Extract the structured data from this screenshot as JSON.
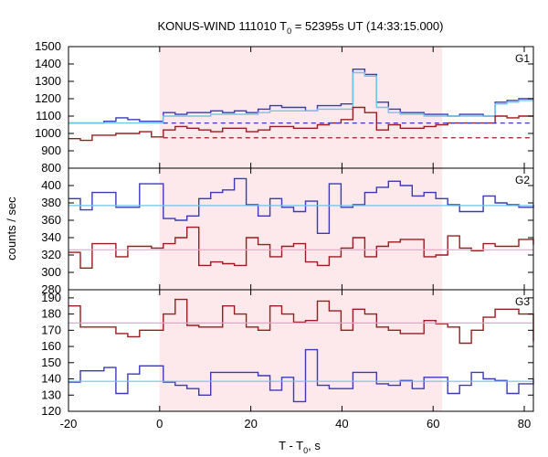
{
  "chart_data": {
    "type": "line",
    "title": "KONUS-WIND 111010 T",
    "title_sub": "0",
    "title_rest": " = 52395s UT (14:33:15.000)",
    "xlabel": "T - T",
    "xlabel_sub": "0",
    "xlabel_rest": ", s",
    "ylabel": "counts / sec",
    "xlim": [
      -20,
      82
    ],
    "x_ticks": [
      -20,
      0,
      20,
      40,
      60,
      80
    ],
    "x_tick_labels": [
      "-20",
      "0",
      "20",
      "40",
      "60",
      "80"
    ],
    "highlight_interval": [
      0,
      62
    ],
    "colors": {
      "highlight": "#fde8ec",
      "blue": "#3a3ab8",
      "red": "#9b1c1c",
      "cyan": "#6ec6ea",
      "pink": "#f0a0c8",
      "frame": "#000000"
    },
    "bin_edges": [
      -20,
      -17.4,
      -14.8,
      -12.2,
      -9.6,
      -7,
      -4.4,
      -1.8,
      0.8,
      3.4,
      6,
      8.6,
      11.2,
      13.8,
      16.4,
      19,
      21.6,
      24.2,
      26.8,
      29.4,
      32,
      34.6,
      37.2,
      39.8,
      42.4,
      45,
      47.6,
      50.2,
      52.8,
      55.4,
      58,
      60.6,
      63.2,
      65.8,
      68.4,
      71,
      73.6,
      76.2,
      78.8,
      82
    ],
    "panels": [
      {
        "label": "G1",
        "ylim": [
          800,
          1500
        ],
        "y_ticks": [
          800,
          900,
          1000,
          1100,
          1200,
          1300,
          1400,
          1500
        ],
        "y_tick_labels": [
          "800",
          "900",
          "1000",
          "1100",
          "1200",
          "1300",
          "1400",
          "1500"
        ],
        "series": [
          {
            "color": "blue",
            "style": "step",
            "values": [
              1060,
              1060,
              1060,
              1070,
              1090,
              1080,
              1070,
              1070,
              1120,
              1110,
              1120,
              1120,
              1130,
              1120,
              1130,
              1120,
              1140,
              1160,
              1150,
              1150,
              1130,
              1160,
              1160,
              1170,
              1370,
              1340,
              1180,
              1140,
              1120,
              1120,
              1110,
              1110,
              1100,
              1110,
              1110,
              1100,
              1180,
              1190,
              1200,
              1200
            ]
          },
          {
            "color": "cyan",
            "style": "step",
            "values": [
              1060,
              1060,
              1060,
              1060,
              1060,
              1060,
              1060,
              1060,
              1100,
              1100,
              1100,
              1100,
              1110,
              1110,
              1110,
              1110,
              1120,
              1130,
              1130,
              1130,
              1130,
              1140,
              1140,
              1140,
              1350,
              1330,
              1150,
              1120,
              1110,
              1110,
              1100,
              1100,
              1100,
              1100,
              1100,
              1100,
              1170,
              1180,
              1190,
              1190
            ]
          },
          {
            "color": "red",
            "style": "step",
            "values": [
              970,
              960,
              990,
              990,
              1000,
              1000,
              1010,
              980,
              1020,
              1040,
              1030,
              1020,
              1010,
              1030,
              1030,
              1010,
              1020,
              1040,
              1040,
              1030,
              1030,
              1050,
              1060,
              1080,
              1150,
              1120,
              1020,
              1050,
              1030,
              1030,
              1040,
              1050,
              1060,
              1060,
              1060,
              1060,
              1100,
              1090,
              1100,
              1100
            ]
          },
          {
            "color": "blue",
            "style": "hline-dashed",
            "x_range": [
              0.8,
              82
            ],
            "value": 1060
          },
          {
            "color": "red",
            "style": "hline-dashed",
            "x_range": [
              0.8,
              82
            ],
            "value": 975
          }
        ]
      },
      {
        "label": "G2",
        "ylim": [
          280,
          420
        ],
        "y_ticks": [
          280,
          300,
          320,
          340,
          360,
          380,
          400
        ],
        "y_tick_labels": [
          "280",
          "300",
          "320",
          "340",
          "360",
          "380",
          "400"
        ],
        "series": [
          {
            "color": "blue",
            "style": "step",
            "values": [
              385,
              372,
              392,
              392,
              375,
              375,
              402,
              402,
              362,
              360,
              365,
              385,
              392,
              395,
              408,
              378,
              365,
              385,
              375,
              370,
              382,
              345,
              402,
              375,
              378,
              392,
              398,
              405,
              400,
              388,
              392,
              385,
              378,
              370,
              370,
              388,
              380,
              378,
              375,
              378
            ]
          },
          {
            "color": "cyan",
            "style": "hline",
            "value": 377
          },
          {
            "color": "red",
            "style": "step",
            "values": [
              323,
              305,
              333,
              333,
              318,
              330,
              330,
              328,
              333,
              340,
              352,
              308,
              312,
              310,
              308,
              340,
              332,
              318,
              330,
              333,
              312,
              308,
              318,
              328,
              340,
              318,
              330,
              335,
              338,
              338,
              318,
              320,
              342,
              328,
              325,
              333,
              330,
              330,
              338,
              332
            ]
          },
          {
            "color": "pink",
            "style": "hline",
            "value": 326
          }
        ]
      },
      {
        "label": "G3",
        "ylim": [
          120,
          195
        ],
        "y_ticks": [
          120,
          130,
          140,
          150,
          160,
          170,
          180,
          190
        ],
        "y_tick_labels": [
          "120",
          "130",
          "140",
          "150",
          "160",
          "170",
          "180",
          "190"
        ],
        "series": [
          {
            "color": "red",
            "style": "step",
            "values": [
              185,
              172,
              172,
              172,
              168,
              166,
              170,
              170,
              180,
              189,
              173,
              172,
              172,
              185,
              180,
              172,
              170,
              185,
              180,
              175,
              176,
              188,
              182,
              170,
              183,
              180,
              172,
              170,
              168,
              168,
              176,
              174,
              172,
              162,
              170,
              178,
              183,
              183,
              180,
              163
            ]
          },
          {
            "color": "pink",
            "style": "hline",
            "value": 174.5
          },
          {
            "color": "blue",
            "style": "step",
            "values": [
              138,
              145,
              145,
              147,
              131,
              143,
              148,
              148,
              138,
              136,
              134,
              130,
              144,
              144,
              144,
              144,
              142,
              133,
              141,
              126,
              158,
              136,
              134,
              134,
              144,
              144,
              137,
              136,
              139,
              134,
              141,
              141,
              131,
              136,
              144,
              140,
              139,
              131,
              137,
              140
            ]
          },
          {
            "color": "cyan",
            "style": "hline",
            "value": 138.5
          }
        ]
      }
    ]
  }
}
